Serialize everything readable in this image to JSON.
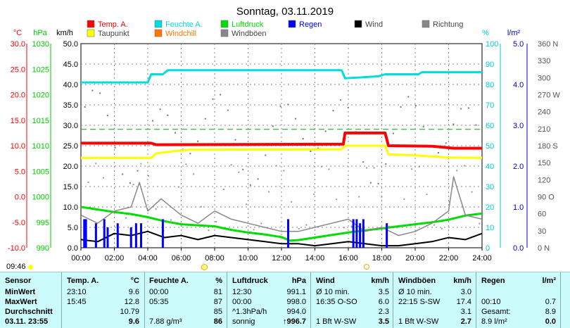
{
  "title": "Sonntag, 03.11.2019",
  "legend": [
    {
      "label": "Temp. A.",
      "color": "#ff0000"
    },
    {
      "label": "Feuchte A.",
      "color": "#00dddd"
    },
    {
      "label": "Luftdruck",
      "color": "#00dd00"
    },
    {
      "label": "Regen",
      "color": "#0000ff"
    },
    {
      "label": "Wind",
      "color": "#000000"
    },
    {
      "label": "Richtung",
      "color": "#888888"
    },
    {
      "label": "Taupunkt",
      "color": "#ffff00"
    },
    {
      "label": "Windchill",
      "color": "#ff7700"
    },
    {
      "label": "Windböen",
      "color": "#888888"
    }
  ],
  "axes": {
    "temp": {
      "unit": "°C",
      "ticks": [
        "30.0",
        "25.0",
        "20.0",
        "15.0",
        "10.0",
        "5.0",
        "0.0",
        "-5.0",
        "-10.0"
      ],
      "color": "#ff0000"
    },
    "press": {
      "unit": "hPa",
      "ticks": [
        "1030",
        "1025",
        "1020",
        "1015",
        "1010",
        "1005",
        "1000",
        "995",
        "990"
      ],
      "color": "#00cc00"
    },
    "wind": {
      "unit": "km/h",
      "ticks": [
        "50.0",
        "45.0",
        "40.0",
        "35.0",
        "30.0",
        "25.0",
        "20.0",
        "15.0",
        "10.0",
        "5.0",
        "0.0"
      ],
      "color": "#000000"
    },
    "hum": {
      "unit": "%",
      "ticks": [
        "100",
        "90",
        "80",
        "70",
        "60",
        "50",
        "40",
        "30",
        "20",
        "10",
        "0"
      ],
      "color": "#00cccc"
    },
    "rain": {
      "unit": "l/m²",
      "ticks": [
        "5.0",
        "4.0",
        "3.0",
        "2.0",
        "1.0",
        "0.0"
      ],
      "color": "#0000cc"
    },
    "dir": {
      "ticks": [
        "360 N",
        "330",
        "300",
        "270 W",
        "240",
        "210",
        "180 S",
        "150",
        "120",
        "90 O",
        "60",
        "30",
        "0 N"
      ],
      "color": "#555555"
    },
    "x": {
      "ticks": [
        "00:00",
        "02:00",
        "04:00",
        "06:00",
        "08:00",
        "10:00",
        "12:00",
        "14:00",
        "16:00",
        "18:00",
        "20:00",
        "22:00",
        "24:00"
      ]
    }
  },
  "chart_data": {
    "type": "line",
    "x_unit": "hours",
    "xlim": [
      0,
      24
    ],
    "series": [
      {
        "name": "Temp. A.",
        "axis": "°C",
        "ylim": [
          -10,
          30
        ],
        "points": [
          [
            0,
            10.5
          ],
          [
            4.2,
            10.5
          ],
          [
            4.5,
            10.2
          ],
          [
            15.7,
            10.3
          ],
          [
            15.8,
            12.5
          ],
          [
            18.2,
            12.5
          ],
          [
            18.4,
            10.0
          ],
          [
            21.0,
            9.9
          ],
          [
            22.3,
            9.5
          ],
          [
            24,
            9.5
          ]
        ]
      },
      {
        "name": "Feuchte A.",
        "axis": "%",
        "ylim": [
          0,
          100
        ],
        "points": [
          [
            0,
            81
          ],
          [
            4.0,
            81
          ],
          [
            4.2,
            85
          ],
          [
            4.9,
            85
          ],
          [
            5.2,
            87
          ],
          [
            15.6,
            87
          ],
          [
            15.8,
            83
          ],
          [
            17.8,
            84
          ],
          [
            18.2,
            85
          ],
          [
            20.2,
            85
          ],
          [
            20.4,
            86
          ],
          [
            24,
            86
          ]
        ]
      },
      {
        "name": "Luftdruck",
        "axis": "hPa",
        "ylim": [
          990,
          1030
        ],
        "points": [
          [
            0,
            998.0
          ],
          [
            1.0,
            997.5
          ],
          [
            2.0,
            997.0
          ],
          [
            3.0,
            996.6
          ],
          [
            4.0,
            996.0
          ],
          [
            5.0,
            995.2
          ],
          [
            6.0,
            994.6
          ],
          [
            7.0,
            994.4
          ],
          [
            8.0,
            994.2
          ],
          [
            9.0,
            993.5
          ],
          [
            10.0,
            993.0
          ],
          [
            11.0,
            992.6
          ],
          [
            12.0,
            992.1
          ],
          [
            12.5,
            991.4
          ],
          [
            13.0,
            991.5
          ],
          [
            14.0,
            992.0
          ],
          [
            15.0,
            992.5
          ],
          [
            16.0,
            993.0
          ],
          [
            17.0,
            993.4
          ],
          [
            18.0,
            993.8
          ],
          [
            19.0,
            994.2
          ],
          [
            20.0,
            994.6
          ],
          [
            21.0,
            995.0
          ],
          [
            22.0,
            995.5
          ],
          [
            23.0,
            996.3
          ],
          [
            24,
            996.7
          ]
        ]
      },
      {
        "name": "Taupunkt",
        "axis": "°C",
        "ylim": [
          -10,
          30
        ],
        "points": [
          [
            0,
            7.6
          ],
          [
            4.2,
            7.6
          ],
          [
            4.5,
            8.5
          ],
          [
            5.5,
            8.9
          ],
          [
            6.5,
            9.2
          ],
          [
            15.6,
            9.3
          ],
          [
            15.8,
            10.0
          ],
          [
            18.2,
            10.0
          ],
          [
            18.4,
            8.3
          ],
          [
            20.0,
            8.1
          ],
          [
            22.0,
            7.7
          ],
          [
            24,
            7.6
          ]
        ]
      },
      {
        "name": "Wind",
        "axis": "km/h",
        "ylim": [
          0,
          50
        ],
        "points": [
          [
            0,
            2.0
          ],
          [
            1.0,
            1.5
          ],
          [
            2.0,
            3.5
          ],
          [
            3.0,
            3.0
          ],
          [
            4.0,
            4.0
          ],
          [
            5.0,
            2.5
          ],
          [
            6.0,
            3.0
          ],
          [
            7.0,
            2.0
          ],
          [
            8.0,
            3.0
          ],
          [
            9.0,
            2.5
          ],
          [
            10.0,
            2.0
          ],
          [
            11.0,
            1.5
          ],
          [
            12.0,
            1.0
          ],
          [
            13.0,
            1.0
          ],
          [
            14.0,
            0.5
          ],
          [
            15.0,
            1.0
          ],
          [
            16.0,
            1.5
          ],
          [
            17.0,
            1.0
          ],
          [
            18.0,
            0.5
          ],
          [
            19.0,
            0.5
          ],
          [
            20.0,
            1.0
          ],
          [
            21.0,
            1.5
          ],
          [
            22.0,
            2.5
          ],
          [
            23.0,
            2.0
          ],
          [
            24,
            3.5
          ]
        ]
      },
      {
        "name": "Windböen",
        "axis": "km/h",
        "ylim": [
          0,
          50
        ],
        "points": [
          [
            0,
            8.0
          ],
          [
            1.0,
            6.0
          ],
          [
            2.0,
            9.0
          ],
          [
            3.0,
            10.0
          ],
          [
            3.5,
            16.0
          ],
          [
            4.0,
            9.0
          ],
          [
            4.8,
            12.0
          ],
          [
            6.0,
            8.0
          ],
          [
            7.0,
            6.0
          ],
          [
            8.0,
            9.0
          ],
          [
            9.0,
            7.0
          ],
          [
            10.0,
            6.0
          ],
          [
            11.0,
            5.0
          ],
          [
            12.0,
            4.0
          ],
          [
            13.0,
            4.0
          ],
          [
            14.0,
            5.0
          ],
          [
            15.0,
            6.0
          ],
          [
            16.0,
            7.0
          ],
          [
            17.0,
            4.0
          ],
          [
            18.0,
            5.0
          ],
          [
            19.0,
            3.0
          ],
          [
            20.0,
            4.0
          ],
          [
            21.0,
            6.0
          ],
          [
            22.0,
            9.0
          ],
          [
            22.3,
            17.4
          ],
          [
            23.0,
            8.0
          ],
          [
            24,
            7.0
          ]
        ]
      },
      {
        "name": "Regen",
        "axis": "l/m²",
        "ylim": [
          0,
          5
        ],
        "type": "bar",
        "points": [
          [
            0.2,
            0.7
          ],
          [
            0.3,
            0.7
          ],
          [
            0.9,
            0.6
          ],
          [
            1.4,
            0.7
          ],
          [
            1.6,
            0.5
          ],
          [
            2.2,
            0.6
          ],
          [
            3.0,
            0.5
          ],
          [
            3.3,
            0.6
          ],
          [
            3.6,
            0.6
          ],
          [
            4.9,
            0.7
          ],
          [
            12.4,
            0.7
          ],
          [
            16.3,
            0.7
          ],
          [
            16.5,
            0.7
          ],
          [
            16.7,
            0.6
          ],
          [
            16.9,
            0.7
          ],
          [
            18.3,
            0.6
          ]
        ]
      }
    ],
    "reference_lines": [
      {
        "axis": "km/h",
        "value": 29.0,
        "color": "#00aa00",
        "style": "dashed"
      }
    ],
    "grid": true
  },
  "time_labels": {
    "left": "09:46"
  },
  "table": {
    "headers": [
      {
        "label": "Sensor"
      },
      {
        "label": "Temp. A.",
        "unit": "°C"
      },
      {
        "label": "Feuchte A.",
        "unit": "%"
      },
      {
        "label": "Luftdruck",
        "unit": "hPa"
      },
      {
        "label": "Wind",
        "unit": "km/h"
      },
      {
        "label": "Windböen",
        "unit": "km/h"
      },
      {
        "label": "Regen",
        "unit": "l/m²"
      }
    ],
    "rows": [
      {
        "label": "MinWert",
        "cells": [
          [
            "23:10",
            "9.6"
          ],
          [
            "00:00",
            "81"
          ],
          [
            "12:30",
            "991.1"
          ],
          [
            "Ø 10 min.",
            "3.5"
          ],
          [
            "Ø 10 min.",
            "3.0"
          ],
          [
            "",
            ""
          ]
        ]
      },
      {
        "label": "MaxWert",
        "cells": [
          [
            "15:45",
            "12.8"
          ],
          [
            "05:35",
            "87"
          ],
          [
            "00:00",
            "998.0"
          ],
          [
            "16:35   O-SO",
            "6.0"
          ],
          [
            "22:15   S-SW",
            "17.4"
          ],
          [
            "00:10",
            "0.7"
          ]
        ]
      },
      {
        "label": "Durchschnitt",
        "cells": [
          [
            "",
            "10.79"
          ],
          [
            "",
            "85"
          ],
          [
            "^1.3hPa/h",
            "994.0"
          ],
          [
            "",
            "2.3"
          ],
          [
            "",
            "3.1"
          ],
          [
            "Gesamt:",
            "8.9"
          ]
        ]
      },
      {
        "label": "03.11. 23:55",
        "cells": [
          [
            "",
            "9.6"
          ],
          [
            "7.88 g/m³",
            "86"
          ],
          [
            "sonnig",
            "↑996.7"
          ],
          [
            "1 Bft W-SW",
            "3.5"
          ],
          [
            "1 Bft W-SW",
            "2.7"
          ],
          [
            "8.9 l/m²",
            "0.0"
          ]
        ]
      }
    ]
  }
}
